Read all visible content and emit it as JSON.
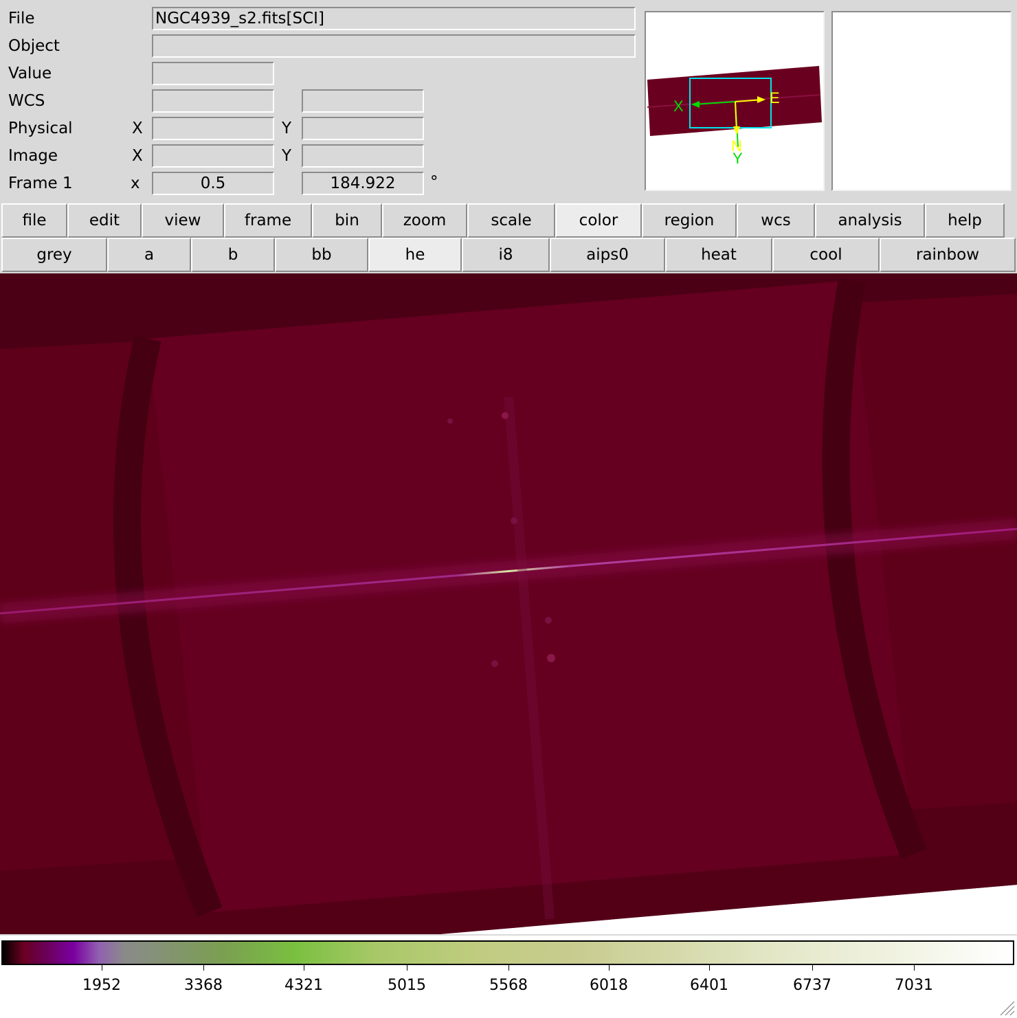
{
  "info": {
    "file_label": "File",
    "file_value": "NGC4939_s2.fits[SCI]",
    "object_label": "Object",
    "object_value": "",
    "value_label": "Value",
    "value_value": "",
    "wcs_label": "WCS",
    "wcs_value1": "",
    "wcs_value2": "",
    "physical_label": "Physical",
    "physical_x_label": "X",
    "physical_x_value": "",
    "physical_y_label": "Y",
    "physical_y_value": "",
    "image_label": "Image",
    "image_x_label": "X",
    "image_x_value": "",
    "image_y_label": "Y",
    "image_y_value": "",
    "frame_label": "Frame 1",
    "frame_x_label": "x",
    "frame_zoom_value": "0.5",
    "frame_angle_value": "184.922",
    "frame_angle_unit": "°"
  },
  "panner": {
    "x_label": "X",
    "y_label": "Y",
    "e_label": "E",
    "n_label": "N",
    "colors": {
      "bbox": "#00e5ee",
      "green": "#00dd00",
      "yellow": "#ffff00",
      "image": "#6a0020"
    }
  },
  "menubar": {
    "items": [
      "file",
      "edit",
      "view",
      "frame",
      "bin",
      "zoom",
      "scale",
      "color",
      "region",
      "wcs",
      "analysis",
      "help"
    ],
    "active": "color"
  },
  "colormaps": {
    "items": [
      "grey",
      "a",
      "b",
      "bb",
      "he",
      "i8",
      "aips0",
      "heat",
      "cool",
      "rainbow"
    ],
    "active": "he"
  },
  "colorbar": {
    "ticks": [
      "1952",
      "3368",
      "4321",
      "5015",
      "5568",
      "6018",
      "6401",
      "6737",
      "7031"
    ],
    "colormap": "he"
  }
}
